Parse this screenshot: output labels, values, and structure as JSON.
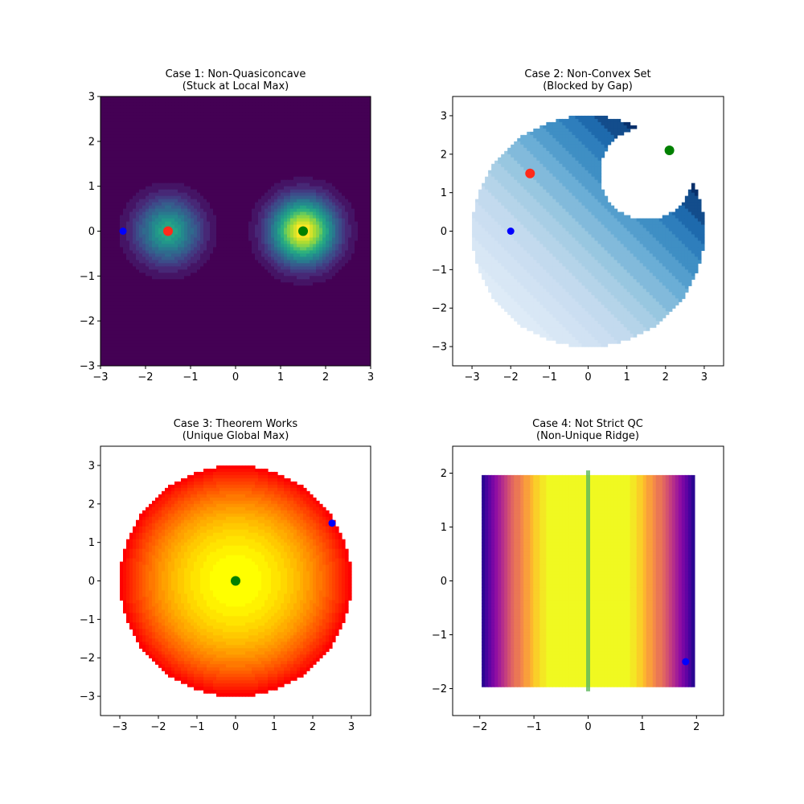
{
  "chart_data": [
    {
      "type": "heatmap",
      "title": "Case 1: Non-Quasiconcave",
      "subtitle": "(Stuck at Local Max)",
      "xlabel": "",
      "ylabel": "",
      "xlim": [
        -3,
        3
      ],
      "ylim": [
        -3,
        3
      ],
      "xticks": [
        "−3",
        "−2",
        "−1",
        "0",
        "1",
        "2",
        "3"
      ],
      "yticks": [
        "−3",
        "−2",
        "−1",
        "0",
        "1",
        "2",
        "3"
      ],
      "xtick_values": [
        -3,
        -2,
        -1,
        0,
        1,
        2,
        3
      ],
      "ytick_values": [
        -3,
        -2,
        -1,
        0,
        1,
        2,
        3
      ],
      "colormap": "viridis",
      "grid": false,
      "points": [
        {
          "x": -2.5,
          "y": 0,
          "color": "#0000ff",
          "role": "start"
        },
        {
          "x": -1.5,
          "y": 0,
          "color": "#ff2a1a",
          "role": "end"
        },
        {
          "x": 1.5,
          "y": 0,
          "color": "#008000",
          "role": "global max"
        }
      ]
    },
    {
      "type": "heatmap",
      "title": "Case 2: Non-Convex Set",
      "subtitle": "(Blocked by Gap)",
      "xlabel": "",
      "ylabel": "",
      "xlim": [
        -3.5,
        3.5
      ],
      "ylim": [
        -3.5,
        3.5
      ],
      "xticks": [
        "−3",
        "−2",
        "−1",
        "0",
        "1",
        "2",
        "3"
      ],
      "yticks": [
        "−3",
        "−2",
        "−1",
        "0",
        "1",
        "2",
        "3"
      ],
      "xtick_values": [
        -3,
        -2,
        -1,
        0,
        1,
        2,
        3
      ],
      "ytick_values": [
        -3,
        -2,
        -1,
        0,
        1,
        2,
        3
      ],
      "colormap": "blues",
      "grid": false,
      "points": [
        {
          "x": -2,
          "y": 0,
          "color": "#0000ff",
          "role": "start"
        },
        {
          "x": -1.5,
          "y": 1.5,
          "color": "#ff2a1a",
          "role": "end"
        },
        {
          "x": 2.1,
          "y": 2.1,
          "color": "#008000",
          "role": "global max"
        }
      ]
    },
    {
      "type": "heatmap",
      "title": "Case 3: Theorem Works",
      "subtitle": "(Unique Global Max)",
      "xlabel": "",
      "ylabel": "",
      "xlim": [
        -3.5,
        3.5
      ],
      "ylim": [
        -3.5,
        3.5
      ],
      "xticks": [
        "−3",
        "−2",
        "−1",
        "0",
        "1",
        "2",
        "3"
      ],
      "yticks": [
        "−3",
        "−2",
        "−1",
        "0",
        "1",
        "2",
        "3"
      ],
      "xtick_values": [
        -3,
        -2,
        -1,
        0,
        1,
        2,
        3
      ],
      "ytick_values": [
        -3,
        -2,
        -1,
        0,
        1,
        2,
        3
      ],
      "colormap": "autumn",
      "grid": false,
      "points": [
        {
          "x": 2.5,
          "y": 1.5,
          "color": "#0000ff",
          "role": "start"
        },
        {
          "x": 0,
          "y": 0,
          "color": "#008000",
          "role": "global max"
        }
      ]
    },
    {
      "type": "heatmap",
      "title": "Case 4: Not Strict QC",
      "subtitle": "(Non-Unique Ridge)",
      "xlabel": "",
      "ylabel": "",
      "xlim": [
        -2.5,
        2.5
      ],
      "ylim": [
        -2.5,
        2.5
      ],
      "xticks": [
        "−2",
        "−1",
        "0",
        "1",
        "2"
      ],
      "yticks": [
        "−2",
        "−1",
        "0",
        "1",
        "2"
      ],
      "xtick_values": [
        -2,
        -1,
        0,
        1,
        2
      ],
      "ytick_values": [
        -2,
        -1,
        0,
        1,
        2
      ],
      "colormap": "plasma",
      "grid": false,
      "points": [
        {
          "x": 1.8,
          "y": -1.5,
          "color": "#0000ff",
          "role": "start"
        }
      ],
      "ridge": {
        "x": 0,
        "y_from": -2.05,
        "y_to": 2.05,
        "color": "#5cb85c"
      }
    }
  ]
}
